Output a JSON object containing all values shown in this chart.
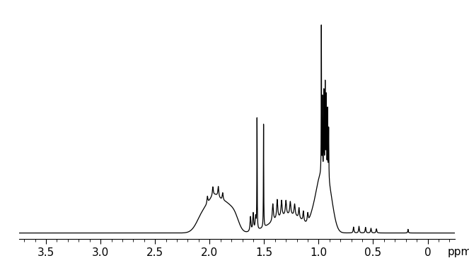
{
  "xlim": [
    3.75,
    -0.25
  ],
  "ylim": [
    -0.03,
    1.08
  ],
  "xticks": [
    3.5,
    3.0,
    2.5,
    2.0,
    1.5,
    1.0,
    0.5,
    0.0
  ],
  "xlabel": "ppm",
  "background_color": "#ffffff",
  "line_color": "#000000",
  "line_width": 0.9,
  "tick_fontsize": 11
}
